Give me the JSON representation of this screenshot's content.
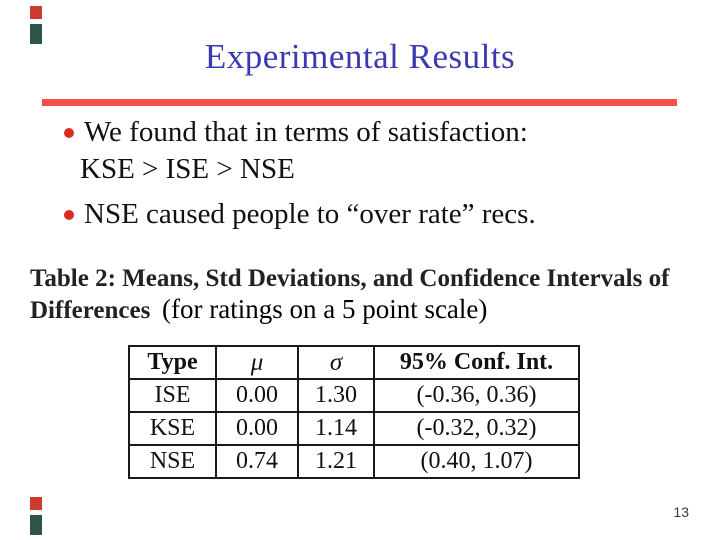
{
  "slide": {
    "title": "Experimental Results",
    "page_number": "13",
    "colors": {
      "title_blue": "#3a3ab2",
      "rule_red": "#f25049",
      "bullet_red": "#dd2b22",
      "decor_red": "#cf3a2e",
      "decor_teal": "#2f5449"
    }
  },
  "bullets": {
    "item1_line1": "We found that in terms of satisfaction:",
    "item1_line2": "KSE > ISE > NSE",
    "item2_line1": "NSE caused people to “over rate” recs."
  },
  "caption": {
    "line1": "Table 2: Means, Std Deviations, and Confidence Intervals of",
    "line2": "Differences",
    "annotation": "(for ratings on a 5 point scale)"
  },
  "table": {
    "headers": {
      "type": "Type",
      "mu": "μ",
      "sigma": "σ",
      "ci": "95% Conf. Int."
    },
    "rows": [
      {
        "type": "ISE",
        "mu": "0.00",
        "sigma": "1.30",
        "ci": "(-0.36, 0.36)"
      },
      {
        "type": "KSE",
        "mu": "0.00",
        "sigma": "1.14",
        "ci": "(-0.32, 0.32)"
      },
      {
        "type": "NSE",
        "mu": "0.74",
        "sigma": "1.21",
        "ci": "(0.40, 1.07)"
      }
    ]
  }
}
